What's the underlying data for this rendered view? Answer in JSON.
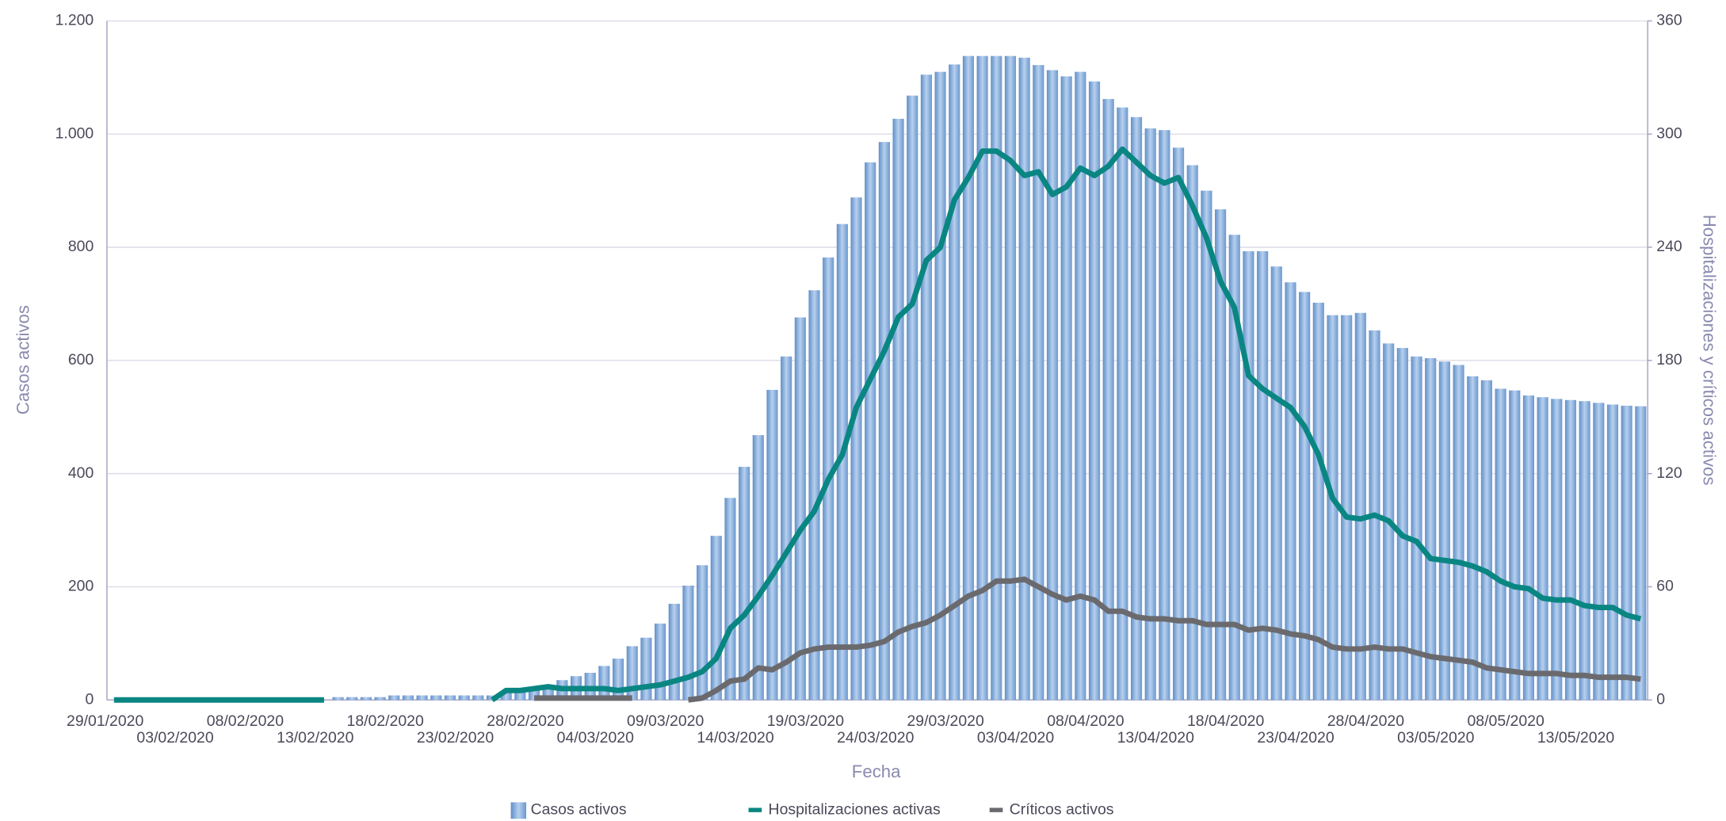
{
  "chart_data": {
    "type": "combo",
    "xlabel": "Fecha",
    "ylabel": "Casos activos",
    "y2label": "Hospitalizaciones y críticos activos",
    "categories": [
      "29/01/2020",
      null,
      null,
      null,
      null,
      "03/02/2020",
      null,
      null,
      null,
      null,
      "08/02/2020",
      null,
      null,
      null,
      null,
      "13/02/2020",
      null,
      null,
      null,
      null,
      "18/02/2020",
      null,
      null,
      null,
      null,
      "23/02/2020",
      null,
      null,
      null,
      null,
      "28/02/2020",
      null,
      null,
      null,
      null,
      "04/03/2020",
      null,
      null,
      null,
      null,
      "09/03/2020",
      null,
      null,
      null,
      null,
      "14/03/2020",
      null,
      null,
      null,
      null,
      "19/03/2020",
      null,
      null,
      null,
      null,
      "24/03/2020",
      null,
      null,
      null,
      null,
      "29/03/2020",
      null,
      null,
      null,
      null,
      "03/04/2020",
      null,
      null,
      null,
      null,
      "08/04/2020",
      null,
      null,
      null,
      null,
      "13/04/2020",
      null,
      null,
      null,
      null,
      "18/04/2020",
      null,
      null,
      null,
      null,
      "23/04/2020",
      null,
      null,
      null,
      null,
      "28/04/2020",
      null,
      null,
      null,
      null,
      "03/05/2020",
      null,
      null,
      null,
      null,
      "08/05/2020",
      null,
      null,
      null,
      null,
      "13/05/2020",
      null,
      null,
      null,
      null
    ],
    "series": [
      {
        "name": "Casos activos",
        "kind": "bar",
        "color": "#7ea6d8",
        "axis": "y",
        "values": [
          null,
          null,
          null,
          null,
          null,
          null,
          null,
          null,
          null,
          null,
          null,
          null,
          null,
          null,
          null,
          null,
          5,
          5,
          5,
          5,
          8,
          8,
          8,
          8,
          8,
          8,
          8,
          8,
          15,
          18,
          20,
          22,
          35,
          42,
          48,
          60,
          73,
          95,
          110,
          135,
          170,
          202,
          238,
          290,
          357,
          412,
          468,
          548,
          607,
          676,
          724,
          782,
          841,
          888,
          950,
          986,
          1027,
          1068,
          1105,
          1110,
          1123,
          1138,
          1138,
          1138,
          1138,
          1135,
          1122,
          1113,
          1102,
          1110,
          1093,
          1062,
          1047,
          1030,
          1010,
          1007,
          976,
          945,
          900,
          867,
          822,
          793,
          793,
          766,
          738,
          721,
          702,
          680,
          680,
          684,
          653,
          630,
          622,
          607,
          604,
          598,
          592,
          572,
          565,
          550,
          547,
          538,
          535,
          532,
          530,
          528,
          525,
          522,
          520,
          519
        ]
      },
      {
        "name": "Hospitalizaciones activas",
        "kind": "line",
        "color": "#0a8682",
        "axis": "y2",
        "values": [
          0,
          0,
          0,
          0,
          0,
          0,
          0,
          0,
          0,
          0,
          0,
          0,
          0,
          0,
          0,
          0,
          null,
          null,
          null,
          null,
          null,
          null,
          null,
          null,
          null,
          null,
          null,
          0,
          5,
          5,
          6,
          7,
          6,
          6,
          6,
          6,
          5,
          6,
          7,
          8,
          10,
          12,
          15,
          22,
          38,
          45,
          55,
          66,
          78,
          90,
          100,
          117,
          130,
          155,
          170,
          185,
          203,
          210,
          233,
          240,
          265,
          277,
          291,
          291,
          286,
          278,
          280,
          268,
          272,
          282,
          278,
          283,
          292,
          285,
          278,
          274,
          277,
          262,
          245,
          222,
          208,
          172,
          165,
          160,
          155,
          145,
          130,
          107,
          97,
          96,
          98,
          95,
          87,
          84,
          75,
          74,
          73,
          71,
          68,
          63,
          60,
          59,
          54,
          53,
          53,
          50,
          49,
          49,
          45,
          43
        ]
      },
      {
        "name": "Críticos activos",
        "kind": "line",
        "color": "#6a6a6e",
        "axis": "y2",
        "values": [
          null,
          null,
          null,
          null,
          null,
          null,
          null,
          null,
          null,
          null,
          null,
          null,
          null,
          null,
          null,
          null,
          null,
          null,
          null,
          null,
          null,
          null,
          null,
          null,
          null,
          null,
          null,
          null,
          null,
          null,
          1,
          1,
          1,
          1,
          1,
          1,
          1,
          1,
          null,
          null,
          null,
          0,
          1,
          5,
          10,
          11,
          17,
          16,
          20,
          25,
          27,
          28,
          28,
          28,
          29,
          31,
          36,
          39,
          41,
          45,
          50,
          55,
          58,
          63,
          63,
          64,
          60,
          56,
          53,
          55,
          53,
          47,
          47,
          44,
          43,
          43,
          42,
          42,
          40,
          40,
          40,
          37,
          38,
          37,
          35,
          34,
          32,
          28,
          27,
          27,
          28,
          27,
          27,
          25,
          23,
          22,
          21,
          20,
          17,
          16,
          15,
          14,
          14,
          14,
          13,
          13,
          12,
          12,
          12,
          11
        ]
      }
    ],
    "ylim": [
      0,
      1200
    ],
    "yticks": [
      0,
      200,
      400,
      600,
      800,
      {
        "value": 1000,
        "label": "1.000"
      },
      {
        "value": 1200,
        "label": "1.200"
      }
    ],
    "y2lim": [
      0,
      360
    ],
    "y2ticks": [
      0,
      60,
      120,
      180,
      240,
      300,
      360
    ],
    "grid": true,
    "legend": "bottom"
  }
}
